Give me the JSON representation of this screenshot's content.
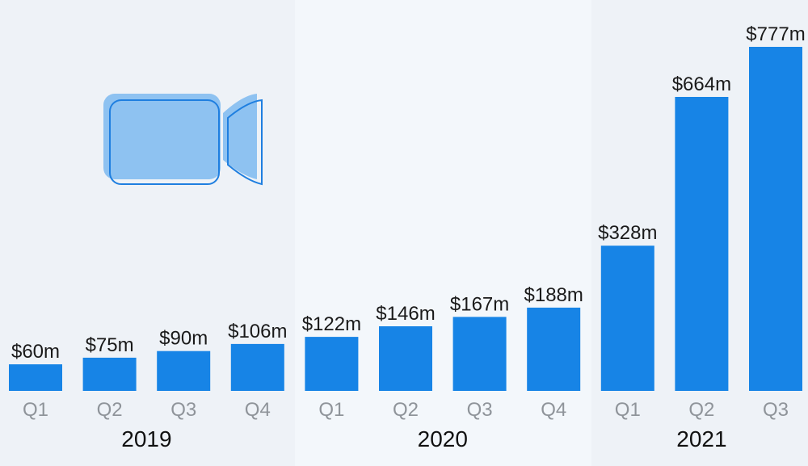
{
  "chart_data": {
    "type": "bar",
    "title": "",
    "xlabel": "",
    "ylabel": "",
    "ylim": [
      0,
      800
    ],
    "grid": false,
    "legend": "none",
    "colors": {
      "bar": "#1784e6",
      "band_light": "#f3f7fb",
      "band_dark": "#eef2f7",
      "value_text": "#1a1a1a",
      "quarter_text": "#8f949a",
      "year_text": "#111111",
      "icon_fill": "#8ec2f1",
      "icon_stroke": "#1f7fe0"
    },
    "icon": "video-camera-icon",
    "groups": [
      {
        "year": "2019",
        "bars": [
          {
            "quarter": "Q1",
            "value": 60,
            "label": "$60m"
          },
          {
            "quarter": "Q2",
            "value": 75,
            "label": "$75m"
          },
          {
            "quarter": "Q3",
            "value": 90,
            "label": "$90m"
          },
          {
            "quarter": "Q4",
            "value": 106,
            "label": "$106m"
          }
        ]
      },
      {
        "year": "2020",
        "bars": [
          {
            "quarter": "Q1",
            "value": 122,
            "label": "$122m"
          },
          {
            "quarter": "Q2",
            "value": 146,
            "label": "$146m"
          },
          {
            "quarter": "Q3",
            "value": 167,
            "label": "$167m"
          },
          {
            "quarter": "Q4",
            "value": 188,
            "label": "$188m"
          }
        ]
      },
      {
        "year": "2021",
        "bars": [
          {
            "quarter": "Q1",
            "value": 328,
            "label": "$328m"
          },
          {
            "quarter": "Q2",
            "value": 664,
            "label": "$664m"
          },
          {
            "quarter": "Q3",
            "value": 777,
            "label": "$777m"
          }
        ]
      }
    ]
  }
}
